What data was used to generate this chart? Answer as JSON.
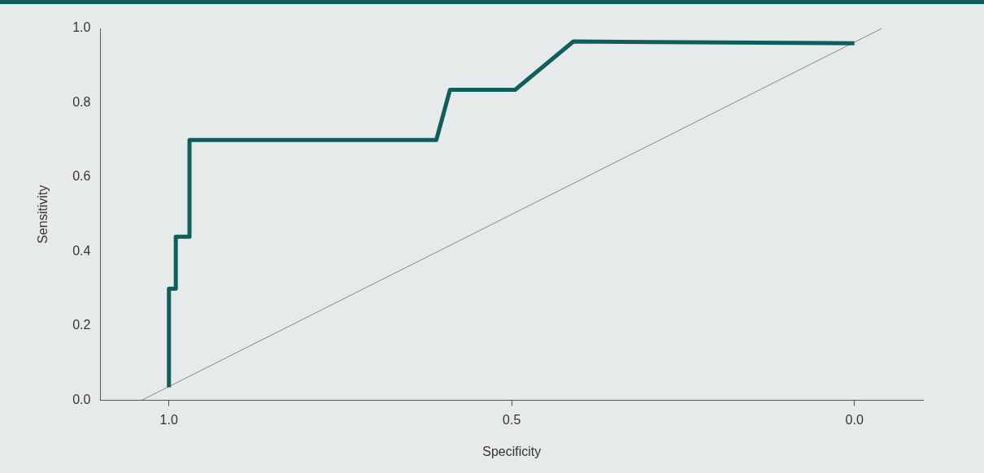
{
  "chart_data": {
    "type": "line",
    "xlabel": "Specificity",
    "ylabel": "Sensitivity",
    "xlim": [
      1.1,
      -0.1
    ],
    "xticks": [
      {
        "value": 1,
        "label": "1.0"
      },
      0.5,
      {
        "value": 0,
        "label": "0.0"
      }
    ],
    "ylim": [
      0,
      1
    ],
    "yticks": [
      {
        "value": 0,
        "label": "0.0"
      },
      0.2,
      0.4,
      0.6,
      0.8,
      {
        "value": 1,
        "label": "1.0"
      }
    ],
    "marker": "none",
    "line_style": "solid",
    "series": [
      {
        "color": "#0e5f5c",
        "x": [
          1.0,
          1.0,
          0.99,
          0.99,
          0.97,
          0.97,
          0.61,
          0.59,
          0.495,
          0.41,
          0.0
        ],
        "values": [
          0.035,
          0.3,
          0.3,
          0.44,
          0.44,
          0.7,
          0.7,
          0.835,
          0.835,
          0.965,
          0.96
        ]
      },
      {
        "color": "#8a8a8a",
        "x": [
          1.04,
          -0.04
        ],
        "values": [
          0,
          1
        ]
      }
    ]
  }
}
